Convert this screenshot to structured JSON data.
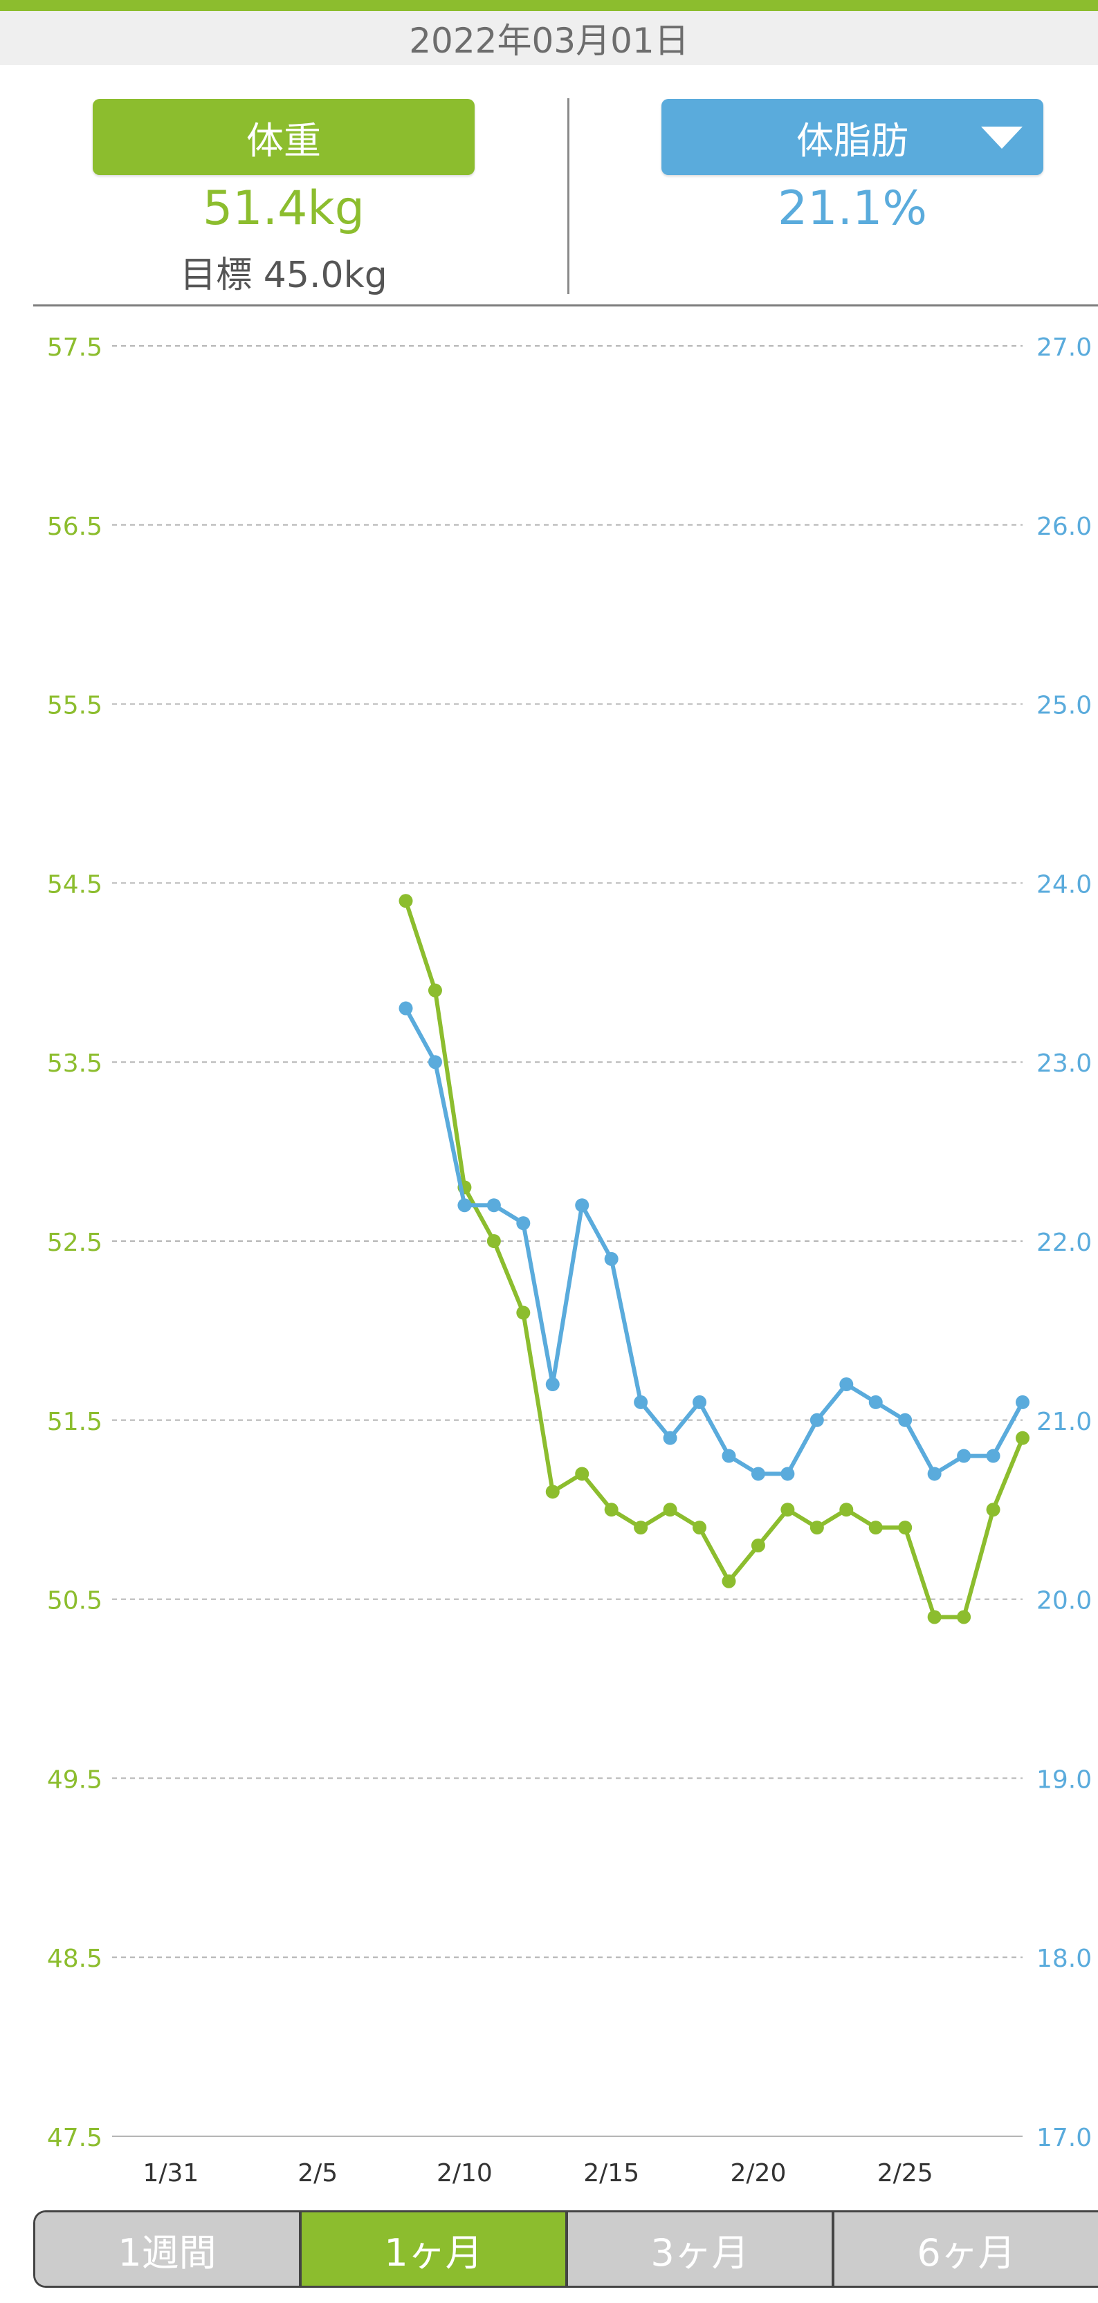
{
  "header": {
    "date": "2022年03月01日"
  },
  "metrics": {
    "weight": {
      "label": "体重",
      "value": "51.4kg",
      "goal": "目標 45.0kg"
    },
    "body_fat": {
      "label": "体脂肪",
      "value": "21.1%",
      "dropdown_icon": "triangle-down-icon"
    }
  },
  "tabs": [
    {
      "label": "1週間",
      "active": false
    },
    {
      "label": "1ヶ月",
      "active": true
    },
    {
      "label": "3ヶ月",
      "active": false
    },
    {
      "label": "6ヶ月",
      "active": false
    }
  ],
  "colors": {
    "weight": "#8cbd2e",
    "body_fat": "#5aabdc",
    "grid": "#b5b5b5",
    "inactive_tab": "#cccccc"
  },
  "chart_data": {
    "type": "line",
    "x_tick_labels": [
      "1/31",
      "2/5",
      "2/10",
      "2/15",
      "2/20",
      "2/25"
    ],
    "x_tick_days": [
      0,
      5,
      10,
      15,
      20,
      25
    ],
    "x_range_days": [
      -2,
      29
    ],
    "y_left": {
      "range": [
        47.5,
        57.5
      ],
      "ticks": [
        "57.5",
        "56.5",
        "55.5",
        "54.5",
        "53.5",
        "52.5",
        "51.5",
        "50.5",
        "49.5",
        "48.5",
        "47.5"
      ]
    },
    "y_right": {
      "range": [
        17.0,
        27.0
      ],
      "ticks": [
        "27.0",
        "26.0",
        "25.0",
        "24.0",
        "23.0",
        "22.0",
        "21.0",
        "20.0",
        "19.0",
        "18.0",
        "17.0"
      ]
    },
    "grid": true,
    "series": [
      {
        "id": "weight",
        "axis": "left",
        "x": [
          8,
          9,
          10,
          11,
          12,
          13,
          14,
          15,
          16,
          17,
          18,
          19,
          20,
          21,
          22,
          23,
          24,
          25,
          26,
          27,
          28,
          29
        ],
        "values": [
          54.4,
          53.9,
          52.8,
          52.5,
          52.1,
          51.1,
          51.2,
          51.0,
          50.9,
          51.0,
          50.9,
          50.6,
          50.8,
          51.0,
          50.9,
          51.0,
          50.9,
          50.9,
          50.4,
          50.4,
          51.0,
          51.4
        ]
      },
      {
        "id": "body_fat",
        "axis": "right",
        "x": [
          8,
          9,
          10,
          11,
          12,
          13,
          14,
          15,
          16,
          17,
          18,
          19,
          20,
          21,
          22,
          23,
          24,
          25,
          26,
          27,
          28,
          29
        ],
        "values": [
          23.3,
          23.0,
          22.2,
          22.2,
          22.1,
          21.2,
          22.2,
          21.9,
          21.1,
          20.9,
          21.1,
          20.8,
          20.7,
          20.7,
          21.0,
          21.2,
          21.1,
          21.0,
          20.7,
          20.8,
          20.8,
          21.1
        ]
      }
    ]
  }
}
